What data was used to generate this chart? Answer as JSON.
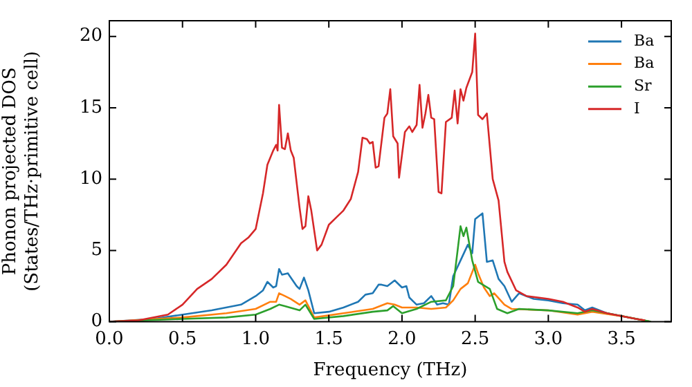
{
  "chart_data": {
    "type": "line",
    "xlabel": "Frequency (THz)",
    "ylabel": "Phonon projected DOS\n(States/THz·primitive cell)",
    "xlim": [
      0,
      3.84
    ],
    "ylim": [
      0,
      21.1
    ],
    "xticks": [
      {
        "value": 0,
        "label": "0.0"
      },
      {
        "value": 0.5,
        "label": "0.5"
      },
      {
        "value": 1,
        "label": "1.0"
      },
      {
        "value": 1.5,
        "label": "1.5"
      },
      {
        "value": 2,
        "label": "2.0"
      },
      {
        "value": 2.5,
        "label": "2.5"
      },
      {
        "value": 3,
        "label": "3.0"
      },
      {
        "value": 3.5,
        "label": "3.5"
      }
    ],
    "yticks": [
      0,
      5,
      10,
      15,
      20
    ],
    "grid": false,
    "legend": "top right",
    "marker": "none",
    "line_style": "solid",
    "series": [
      {
        "name": "Ba",
        "color": "#1f77b4",
        "x": [
          0,
          0.3,
          0.5,
          0.7,
          0.9,
          1.0,
          1.05,
          1.08,
          1.12,
          1.14,
          1.16,
          1.18,
          1.22,
          1.28,
          1.3,
          1.33,
          1.36,
          1.4,
          1.5,
          1.6,
          1.7,
          1.75,
          1.8,
          1.84,
          1.86,
          1.9,
          1.95,
          2.0,
          2.03,
          2.05,
          2.1,
          2.15,
          2.2,
          2.24,
          2.28,
          2.32,
          2.35,
          2.4,
          2.45,
          2.48,
          2.5,
          2.55,
          2.58,
          2.62,
          2.66,
          2.7,
          2.75,
          2.8,
          2.9,
          3.0,
          3.1,
          3.2,
          3.25,
          3.3,
          3.4,
          3.6,
          3.7
        ],
        "values": [
          0,
          0.2,
          0.5,
          0.8,
          1.2,
          1.8,
          2.2,
          2.8,
          2.4,
          2.5,
          3.7,
          3.3,
          3.4,
          2.5,
          2.3,
          3.1,
          2.2,
          0.6,
          0.7,
          1.0,
          1.4,
          1.9,
          2.0,
          2.6,
          2.6,
          2.5,
          2.9,
          2.4,
          2.5,
          1.7,
          1.2,
          1.3,
          1.8,
          1.2,
          1.3,
          1.2,
          3.2,
          4.3,
          5.4,
          4.8,
          7.2,
          7.6,
          4.2,
          4.3,
          3.0,
          2.5,
          1.4,
          2.0,
          1.6,
          1.5,
          1.3,
          1.2,
          0.8,
          1.0,
          0.6,
          0.2,
          0
        ]
      },
      {
        "name": "Ba",
        "color": "#ff7f0e",
        "x": [
          0,
          0.5,
          0.8,
          1.0,
          1.1,
          1.14,
          1.16,
          1.2,
          1.24,
          1.3,
          1.34,
          1.4,
          1.6,
          1.8,
          1.9,
          1.95,
          2.0,
          2.1,
          2.2,
          2.3,
          2.35,
          2.4,
          2.45,
          2.5,
          2.52,
          2.56,
          2.6,
          2.63,
          2.7,
          2.75,
          3.0,
          3.2,
          3.3,
          3.5,
          3.7
        ],
        "values": [
          0,
          0.3,
          0.6,
          0.9,
          1.4,
          1.4,
          2.0,
          1.8,
          1.6,
          1.2,
          1.5,
          0.3,
          0.6,
          0.9,
          1.3,
          1.2,
          1.0,
          1.0,
          0.9,
          1.0,
          1.5,
          2.3,
          2.7,
          4.0,
          3.4,
          2.4,
          1.8,
          2.0,
          1.2,
          0.9,
          0.8,
          0.5,
          0.7,
          0.4,
          0
        ]
      },
      {
        "name": "Sr",
        "color": "#2ca02c",
        "x": [
          0,
          0.5,
          0.8,
          1.0,
          1.1,
          1.16,
          1.2,
          1.3,
          1.34,
          1.4,
          1.6,
          1.8,
          1.9,
          1.94,
          2.0,
          2.1,
          2.2,
          2.3,
          2.35,
          2.38,
          2.4,
          2.42,
          2.44,
          2.48,
          2.52,
          2.6,
          2.65,
          2.72,
          2.8,
          3.0,
          3.2,
          3.3,
          3.5,
          3.7
        ],
        "values": [
          0,
          0.2,
          0.3,
          0.5,
          0.9,
          1.2,
          1.1,
          0.8,
          1.2,
          0.2,
          0.4,
          0.7,
          0.8,
          1.1,
          0.6,
          0.9,
          1.4,
          1.5,
          2.5,
          5.0,
          6.7,
          6.0,
          6.6,
          4.3,
          2.8,
          2.3,
          0.9,
          0.6,
          0.9,
          0.8,
          0.6,
          0.8,
          0.4,
          0
        ]
      },
      {
        "name": "I",
        "color": "#d62728",
        "x": [
          0,
          0.2,
          0.4,
          0.5,
          0.6,
          0.7,
          0.8,
          0.9,
          0.95,
          1.0,
          1.05,
          1.08,
          1.12,
          1.14,
          1.15,
          1.16,
          1.18,
          1.2,
          1.22,
          1.24,
          1.26,
          1.3,
          1.32,
          1.34,
          1.36,
          1.38,
          1.42,
          1.45,
          1.5,
          1.55,
          1.6,
          1.65,
          1.7,
          1.73,
          1.76,
          1.78,
          1.8,
          1.82,
          1.84,
          1.88,
          1.9,
          1.92,
          1.94,
          1.97,
          1.98,
          2.02,
          2.05,
          2.07,
          2.1,
          2.12,
          2.14,
          2.16,
          2.18,
          2.2,
          2.22,
          2.25,
          2.27,
          2.3,
          2.34,
          2.36,
          2.38,
          2.4,
          2.42,
          2.44,
          2.48,
          2.5,
          2.52,
          2.55,
          2.58,
          2.62,
          2.66,
          2.7,
          2.72,
          2.78,
          2.85,
          3.0,
          3.1,
          3.2,
          3.25,
          3.3,
          3.4,
          3.6,
          3.66
        ],
        "values": [
          0,
          0.1,
          0.5,
          1.2,
          2.3,
          3.0,
          4.0,
          5.5,
          5.9,
          6.5,
          9,
          11,
          12,
          12.4,
          12.0,
          15.2,
          12.2,
          12.1,
          13.2,
          12.0,
          11.5,
          8.0,
          6.5,
          6.7,
          8.8,
          7.8,
          5.0,
          5.4,
          6.8,
          7.3,
          7.8,
          8.6,
          10.5,
          12.9,
          12.8,
          12.5,
          12.6,
          10.8,
          10.9,
          14.3,
          14.6,
          16.3,
          13.0,
          12.5,
          10.1,
          13.3,
          13.7,
          13.3,
          13.8,
          16.6,
          13.6,
          14.6,
          15.9,
          14.3,
          14.2,
          9.1,
          9.0,
          14.0,
          14.3,
          16.2,
          13.9,
          16.3,
          15.5,
          16.4,
          17.5,
          20.2,
          14.5,
          14.2,
          14.6,
          10.0,
          8.5,
          4.2,
          3.5,
          2.2,
          1.8,
          1.6,
          1.4,
          1.0,
          0.7,
          0.9,
          0.6,
          0.2,
          0.1
        ]
      }
    ]
  }
}
